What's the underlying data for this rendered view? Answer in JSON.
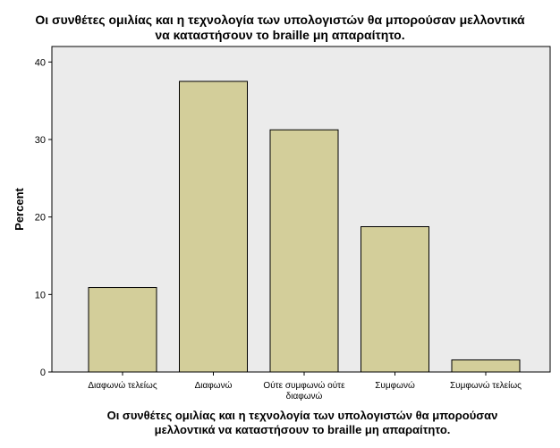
{
  "chart_data": {
    "type": "bar",
    "title": "Οι συνθέτες ομιλίας και η τεχνολογία των υπολογιστών θα μπορούσαν μελλοντικά να καταστήσουν το braille μη απαραίτητο.",
    "title_lines": [
      "Οι συνθέτες ομιλίας και η τεχνολογία των υπολογιστών θα μπορούσαν μελλοντικά",
      "να καταστήσουν το braille μη απαραίτητο."
    ],
    "xlabel_lines": [
      "Οι συνθέτες ομιλίας και η τεχνολογία των υπολογιστών θα μπορούσαν",
      "μελλοντικά να καταστήσουν το braille μη απαραίτητο."
    ],
    "ylabel": "Percent",
    "categories": [
      [
        "Διαφωνώ τελείως"
      ],
      [
        "Διαφωνώ"
      ],
      [
        "Ούτε συμφωνώ ούτε",
        "διαφωνώ"
      ],
      [
        "Συμφωνώ"
      ],
      [
        "Συμφωνώ τελείως"
      ]
    ],
    "values": [
      10.9,
      37.5,
      31.25,
      18.75,
      1.56
    ],
    "yticks": [
      "0",
      "10",
      "20",
      "30",
      "40"
    ],
    "ylim": [
      0,
      42
    ],
    "grid": false,
    "colors": {
      "bar_fill": "#d3ce9a",
      "bar_stroke": "#000000",
      "plot_background": "#ebebeb",
      "axis": "#000000"
    }
  }
}
